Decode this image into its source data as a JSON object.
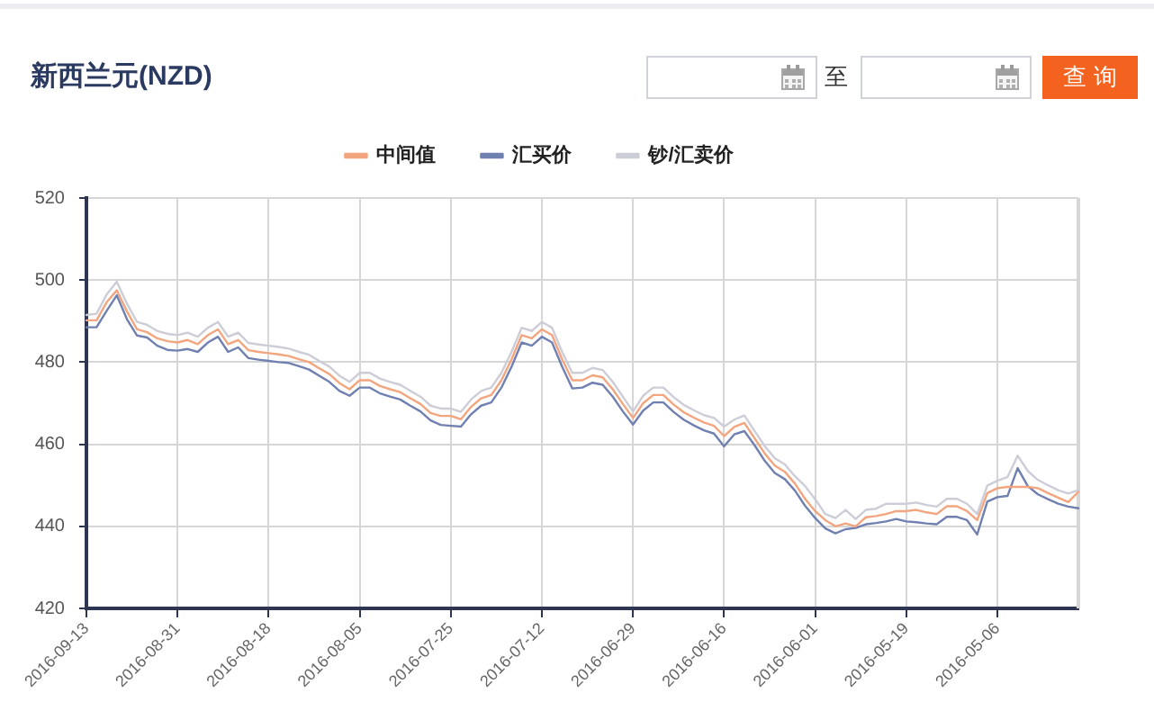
{
  "chart_data": {
    "type": "line",
    "title": "新西兰元(NZD)",
    "annotations": [
      "至",
      "查 询"
    ],
    "categories": [
      "2016-09-13",
      null,
      null,
      null,
      null,
      null,
      null,
      null,
      null,
      "2016-08-31",
      null,
      null,
      null,
      null,
      null,
      null,
      null,
      null,
      "2016-08-18",
      null,
      null,
      null,
      null,
      null,
      null,
      null,
      null,
      "2016-08-05",
      null,
      null,
      null,
      null,
      null,
      null,
      null,
      null,
      "2016-07-25",
      null,
      null,
      null,
      null,
      null,
      null,
      null,
      null,
      "2016-07-12",
      null,
      null,
      null,
      null,
      null,
      null,
      null,
      null,
      "2016-06-29",
      null,
      null,
      null,
      null,
      null,
      null,
      null,
      null,
      "2016-06-16",
      null,
      null,
      null,
      null,
      null,
      null,
      null,
      null,
      "2016-06-01",
      null,
      null,
      null,
      null,
      null,
      null,
      null,
      null,
      "2016-05-19",
      null,
      null,
      null,
      null,
      null,
      null,
      null,
      null,
      "2016-05-06",
      null,
      null,
      null,
      null,
      null,
      null,
      null,
      null
    ],
    "series": [
      {
        "name": "中间值",
        "color": "#f2a57e",
        "values": [
          490.2,
          490.2,
          494.6,
          497.5,
          492.4,
          488.0,
          487.3,
          485.8,
          485.1,
          484.8,
          485.4,
          484.4,
          486.6,
          488.0,
          484.4,
          485.4,
          482.9,
          482.5,
          482.2,
          481.9,
          481.5,
          480.7,
          480.0,
          478.5,
          477.1,
          474.9,
          473.4,
          475.6,
          475.6,
          474.2,
          473.4,
          472.7,
          471.2,
          469.8,
          467.6,
          466.9,
          466.9,
          466.1,
          469.1,
          471.2,
          472.0,
          475.6,
          480.7,
          486.6,
          485.8,
          488.0,
          486.6,
          480.7,
          475.6,
          475.6,
          476.8,
          476.3,
          473.4,
          469.8,
          466.4,
          470.0,
          472.0,
          472.0,
          469.7,
          467.8,
          466.5,
          465.3,
          464.5,
          462.0,
          464.2,
          465.2,
          461.5,
          457.8,
          454.8,
          453.3,
          450.4,
          446.7,
          443.7,
          441.5,
          440.0,
          440.7,
          440.0,
          442.2,
          442.5,
          443.0,
          443.7,
          443.7,
          444.0,
          443.4,
          443.0,
          444.9,
          444.9,
          443.7,
          441.5,
          448.1,
          449.3,
          449.6,
          449.6,
          449.6,
          449.3,
          448.1,
          447.0,
          445.9,
          448.4
        ]
      },
      {
        "name": "汇买价",
        "color": "#7080b0",
        "values": [
          488.5,
          488.5,
          492.5,
          496.3,
          490.5,
          486.5,
          486.0,
          484.0,
          483.0,
          482.8,
          483.2,
          482.5,
          484.8,
          486.2,
          482.5,
          483.6,
          481.0,
          480.6,
          480.3,
          480.0,
          479.8,
          479.0,
          478.2,
          476.7,
          475.2,
          473.0,
          471.8,
          473.8,
          473.8,
          472.4,
          471.6,
          470.9,
          469.4,
          468.0,
          465.8,
          464.7,
          464.5,
          464.3,
          467.3,
          469.4,
          470.2,
          473.8,
          478.9,
          484.8,
          484.0,
          486.2,
          484.8,
          478.9,
          473.6,
          473.8,
          475.0,
          474.5,
          471.6,
          468.0,
          464.8,
          468.2,
          470.2,
          470.2,
          467.9,
          466.0,
          464.6,
          463.4,
          462.6,
          459.5,
          462.4,
          463.2,
          459.8,
          456.0,
          453.0,
          451.5,
          448.7,
          445.0,
          442.0,
          439.5,
          438.3,
          439.3,
          439.6,
          440.5,
          440.8,
          441.2,
          441.8,
          441.2,
          441.0,
          440.7,
          440.5,
          442.3,
          442.3,
          441.5,
          438.0,
          446.0,
          447.1,
          447.4,
          454.2,
          449.8,
          447.8,
          446.6,
          445.5,
          444.8,
          444.4
        ]
      },
      {
        "name": "钞/汇卖价",
        "color": "#cdcdd8",
        "values": [
          491.5,
          491.8,
          496.5,
          499.6,
          494.3,
          489.8,
          489.1,
          487.6,
          486.9,
          486.6,
          487.2,
          486.2,
          488.4,
          489.8,
          486.2,
          487.2,
          484.7,
          484.3,
          484.0,
          483.7,
          483.3,
          482.5,
          481.8,
          480.3,
          478.9,
          476.7,
          475.2,
          477.4,
          477.4,
          476.0,
          475.2,
          474.5,
          473.0,
          471.6,
          469.4,
          468.7,
          468.7,
          467.9,
          470.9,
          473.0,
          473.8,
          477.4,
          482.5,
          488.4,
          487.6,
          489.8,
          488.4,
          482.5,
          477.4,
          477.4,
          478.6,
          478.1,
          475.2,
          471.6,
          468.0,
          471.8,
          473.8,
          473.8,
          471.5,
          469.6,
          468.3,
          467.1,
          466.4,
          464.3,
          466.0,
          467.0,
          463.3,
          459.6,
          456.6,
          455.1,
          452.2,
          449.8,
          446.6,
          443.0,
          442.0,
          444.0,
          441.8,
          444.0,
          444.3,
          445.5,
          445.5,
          445.5,
          445.8,
          445.2,
          444.8,
          446.7,
          446.7,
          445.5,
          443.0,
          449.9,
          451.1,
          452.0,
          457.2,
          453.5,
          451.3,
          450.0,
          448.8,
          448.0,
          448.8
        ]
      }
    ],
    "ylim": [
      420,
      520
    ],
    "yticks": [
      420,
      440,
      460,
      480,
      500,
      520
    ],
    "grid": true,
    "legend": "top"
  }
}
